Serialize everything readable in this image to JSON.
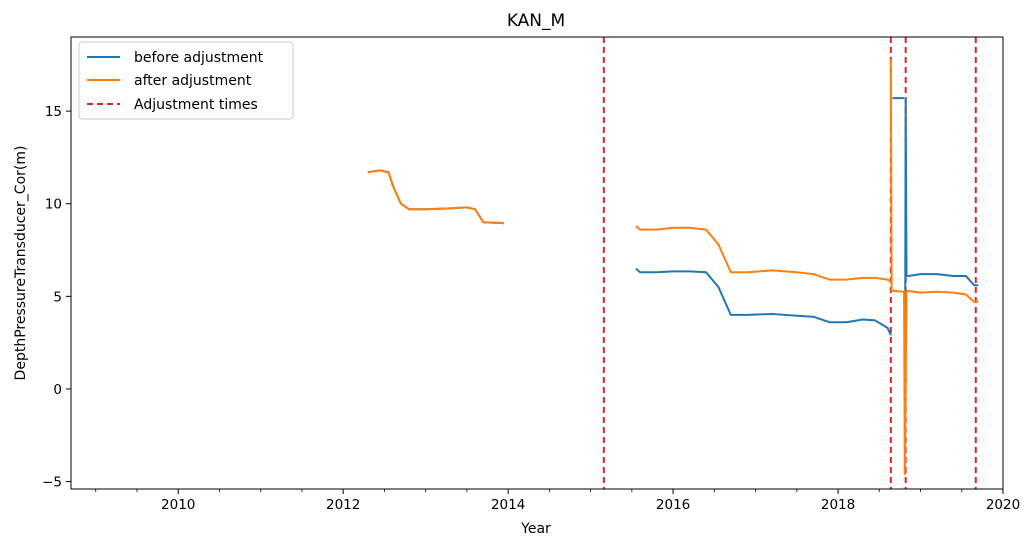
{
  "chart_data": {
    "type": "line",
    "title": "KAN_M",
    "xlabel": "Year",
    "ylabel": "DepthPressureTransducer_Cor(m)",
    "xlim": [
      2008.7,
      2020.0
    ],
    "ylim": [
      -5.4,
      19.0
    ],
    "xticks": [
      2010,
      2012,
      2014,
      2016,
      2018,
      2020
    ],
    "yticks": [
      -5,
      0,
      5,
      10,
      15
    ],
    "grid": false,
    "legend_position": "upper-left",
    "series": [
      {
        "name": "before adjustment",
        "color": "#1f77b4",
        "style": "solid",
        "x": [
          2012.3,
          2012.45,
          2012.55,
          2012.6,
          2012.7,
          2012.8,
          2013.0,
          2013.3,
          2013.5,
          2013.6,
          2013.7,
          2013.95,
          null,
          2015.55,
          2015.6,
          2015.8,
          2016.0,
          2016.2,
          2016.4,
          2016.55,
          2016.65,
          2016.7,
          2016.9,
          2017.2,
          2017.5,
          2017.7,
          2017.9,
          2018.1,
          2018.3,
          2018.45,
          2018.6,
          2018.64,
          null,
          2018.66,
          2018.8,
          null,
          2018.81,
          2018.82,
          2018.83,
          2018.85,
          2019.0,
          2019.2,
          2019.4,
          2019.55,
          2019.65,
          2019.7
        ],
        "y": [
          11.7,
          11.8,
          11.7,
          11.0,
          10.0,
          9.7,
          9.7,
          9.75,
          9.8,
          9.7,
          9.0,
          8.95,
          null,
          6.5,
          6.3,
          6.3,
          6.35,
          6.35,
          6.3,
          5.5,
          4.5,
          4.0,
          4.0,
          4.05,
          3.95,
          3.9,
          3.6,
          3.6,
          3.75,
          3.7,
          3.3,
          2.9,
          null,
          15.7,
          15.7,
          null,
          -4.6,
          15.7,
          6.1,
          6.1,
          6.2,
          6.2,
          6.1,
          6.1,
          5.6,
          5.6
        ]
      },
      {
        "name": "after adjustment",
        "color": "#ff7f0e",
        "style": "solid",
        "x": [
          2012.3,
          2012.45,
          2012.55,
          2012.6,
          2012.7,
          2012.8,
          2013.0,
          2013.3,
          2013.5,
          2013.6,
          2013.7,
          2013.95,
          null,
          2015.55,
          2015.6,
          2015.8,
          2016.0,
          2016.2,
          2016.4,
          2016.55,
          2016.65,
          2016.7,
          2016.9,
          2017.2,
          2017.5,
          2017.7,
          2017.9,
          2018.1,
          2018.3,
          2018.45,
          2018.6,
          2018.64,
          null,
          2018.64,
          2018.65,
          2018.66,
          2018.8,
          2018.81,
          2018.83,
          2019.0,
          2019.2,
          2019.4,
          2019.55,
          2019.65,
          2019.7
        ],
        "y": [
          11.7,
          11.8,
          11.7,
          11.0,
          10.0,
          9.7,
          9.7,
          9.75,
          9.8,
          9.7,
          9.0,
          8.95,
          null,
          8.8,
          8.6,
          8.6,
          8.7,
          8.7,
          8.6,
          7.8,
          6.8,
          6.3,
          6.3,
          6.4,
          6.3,
          6.2,
          5.9,
          5.9,
          6.0,
          6.0,
          5.9,
          5.8,
          null,
          17.8,
          5.3,
          5.3,
          5.25,
          -4.6,
          5.3,
          5.2,
          5.25,
          5.2,
          5.1,
          4.7,
          4.7
        ]
      }
    ],
    "vlines": {
      "name": "Adjustment times",
      "color": "#d62728",
      "style": "dashed",
      "x": [
        2015.16,
        2018.64,
        2018.82,
        2019.67
      ]
    }
  }
}
